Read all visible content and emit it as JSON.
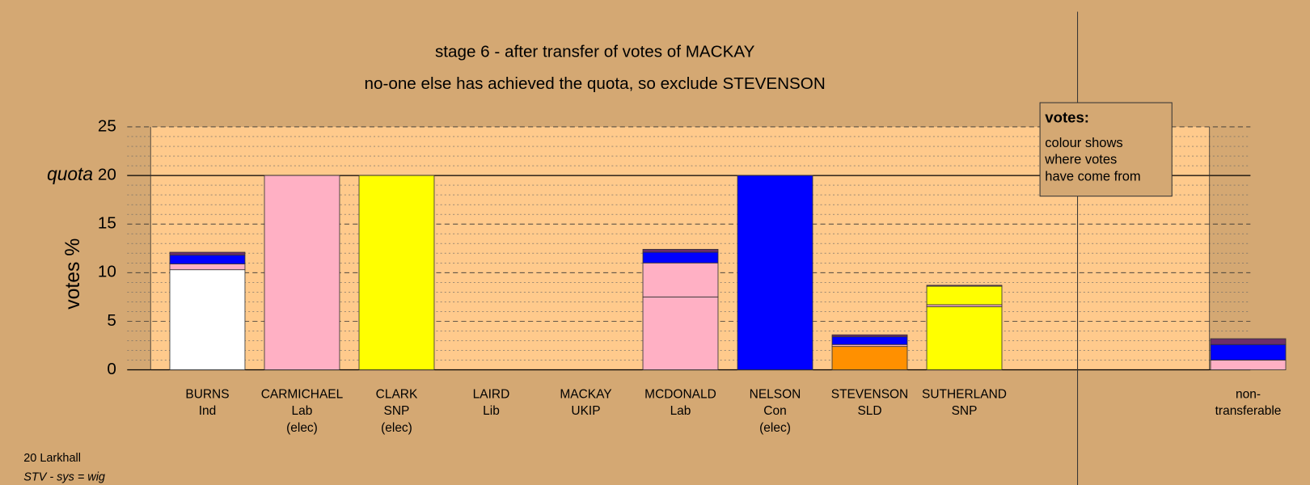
{
  "chart_data": {
    "type": "stacked-bar",
    "title": "stage 6 - after transfer of votes of MACKAY",
    "subtitle": "no-one else has achieved the quota, so exclude STEVENSON",
    "y_label": "votes %",
    "quota": 20,
    "quota_label": "quota",
    "ylim": [
      0,
      25
    ],
    "yticks": [
      0,
      5,
      10,
      15,
      20,
      25
    ],
    "minor_yticks": [
      1,
      2,
      3,
      4,
      6,
      7,
      8,
      9,
      11,
      12,
      13,
      14,
      16,
      17,
      18,
      19,
      21,
      22,
      23,
      24
    ],
    "grid": true,
    "categories": [
      [
        "BURNS",
        "Ind"
      ],
      [
        "CARMICHAEL",
        "Lab",
        "(elec)"
      ],
      [
        "CLARK",
        "SNP",
        "(elec)"
      ],
      [
        "LAIRD",
        "Lib"
      ],
      [
        "MACKAY",
        "UKIP"
      ],
      [
        "MCDONALD",
        "Lab"
      ],
      [
        "NELSON",
        "Con",
        "(elec)"
      ],
      [
        "STEVENSON",
        "SLD"
      ],
      [
        "SUTHERLAND",
        "SNP"
      ],
      [
        "non-",
        "transferable"
      ]
    ],
    "series": [
      {
        "color": "#ffffff",
        "values": [
          10.3,
          0,
          0,
          0,
          0,
          0,
          0,
          0,
          0,
          0
        ]
      },
      {
        "color": "#ffb0c4",
        "values": [
          0,
          20,
          0,
          0,
          0,
          7.5,
          0,
          0,
          0,
          0
        ]
      },
      {
        "color": "#ffff00",
        "values": [
          0,
          0,
          20,
          0,
          0,
          0,
          0,
          0,
          6.5,
          0
        ]
      },
      {
        "color": "#0000ff",
        "values": [
          0,
          0,
          0,
          0,
          0,
          0,
          20,
          0,
          0,
          0
        ]
      },
      {
        "color": "#ff9000",
        "values": [
          0,
          0,
          0,
          0,
          0,
          0,
          0,
          2.4,
          0,
          0
        ]
      },
      {
        "color": "#ffb0c4",
        "values": [
          0.6,
          0,
          0,
          0,
          0,
          3.5,
          0,
          0.2,
          0.2,
          1.0
        ]
      },
      {
        "color": "#ffff00",
        "values": [
          0,
          0,
          0,
          0,
          0,
          0,
          0,
          0,
          1.9,
          0
        ]
      },
      {
        "color": "#0000ff",
        "values": [
          0.9,
          0,
          0,
          0,
          0,
          1.1,
          0,
          0.8,
          0,
          1.6
        ]
      },
      {
        "color": "#6b2d6b",
        "values": [
          0.3,
          0,
          0,
          0,
          0,
          0.3,
          0,
          0.2,
          0.1,
          0.6
        ]
      }
    ],
    "legend": {
      "title": "votes:",
      "lines": [
        "colour shows",
        "where votes",
        "have come from"
      ]
    },
    "footer": [
      "20 Larkhall",
      "STV - sys = wig"
    ]
  }
}
